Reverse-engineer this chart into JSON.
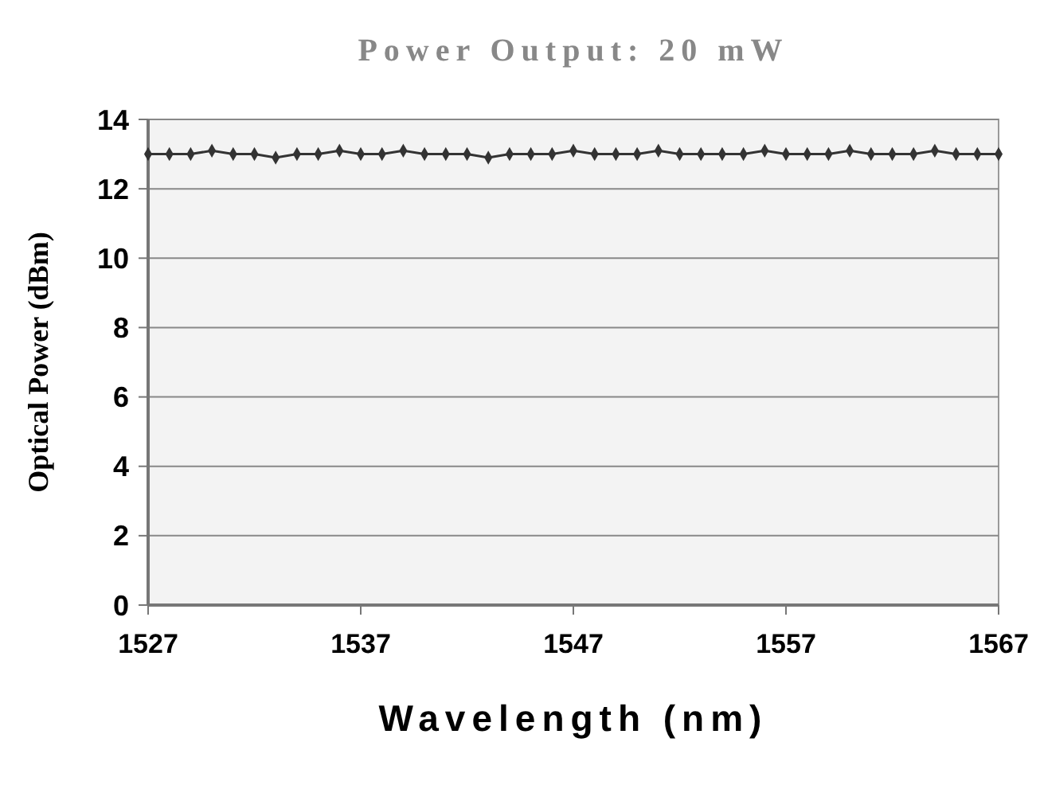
{
  "chart_data": {
    "type": "line",
    "title": "Power Output: 20 mW",
    "xlabel": "Wavelength (nm)",
    "ylabel": "Optical Power (dBm)",
    "x": [
      1527,
      1528,
      1529,
      1530,
      1531,
      1532,
      1533,
      1534,
      1535,
      1536,
      1537,
      1538,
      1539,
      1540,
      1541,
      1542,
      1543,
      1544,
      1545,
      1546,
      1547,
      1548,
      1549,
      1550,
      1551,
      1552,
      1553,
      1554,
      1555,
      1556,
      1557,
      1558,
      1559,
      1560,
      1561,
      1562,
      1563,
      1564,
      1565,
      1566,
      1567
    ],
    "series": [
      {
        "color": "#333333",
        "values": [
          13.0,
          13.0,
          13.0,
          13.1,
          13.0,
          13.0,
          12.9,
          13.0,
          13.0,
          13.1,
          13.0,
          13.0,
          13.1,
          13.0,
          13.0,
          13.0,
          12.9,
          13.0,
          13.0,
          13.0,
          13.1,
          13.0,
          13.0,
          13.0,
          13.1,
          13.0,
          13.0,
          13.0,
          13.0,
          13.1,
          13.0,
          13.0,
          13.0,
          13.1,
          13.0,
          13.0,
          13.0,
          13.1,
          13.0,
          13.0,
          13.0
        ]
      }
    ],
    "xlim": [
      1527,
      1567
    ],
    "xticks": [
      1527,
      1537,
      1547,
      1557,
      1567
    ],
    "ylim": [
      0,
      14
    ],
    "yticks": [
      0,
      2,
      4,
      6,
      8,
      10,
      12,
      14
    ],
    "grid": "y",
    "marker": "diamond",
    "line_style": "solid"
  }
}
